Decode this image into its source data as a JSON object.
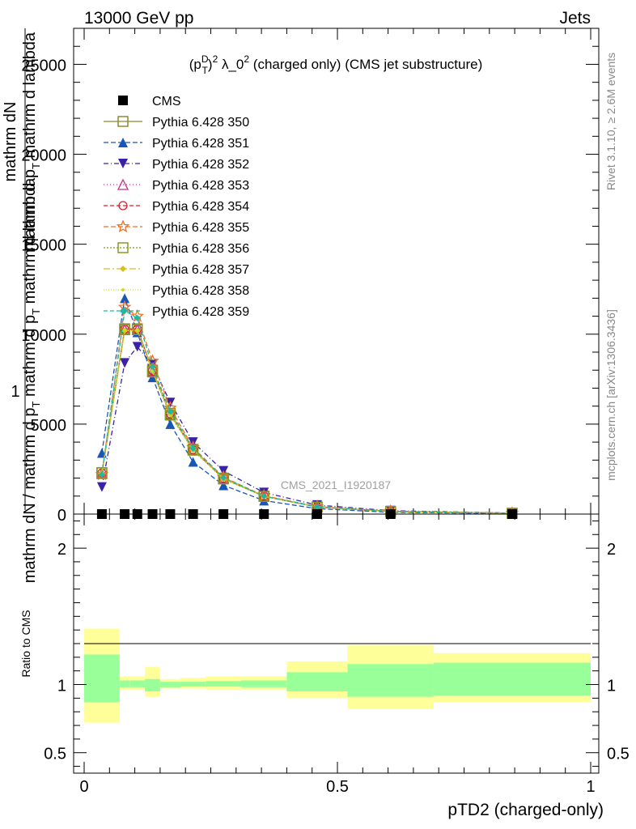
{
  "header": {
    "left": "13000 GeV pp",
    "right": "Jets"
  },
  "side_labels": {
    "rivet": "Rivet 3.1.10, ≥ 2.6M events",
    "mcplots": "mcplots.cern.ch [arXiv:1306.3436]"
  },
  "watermark": "CMS_2021_I1920187",
  "chart_data": [
    {
      "type": "line",
      "panel": "main",
      "title": "(p_T^D)^2 λ_0^2 (charged only) (CMS jet substructure)",
      "title_parts": {
        "pre": "(p",
        "sub": "T",
        "sup1": "D",
        "mid": ")",
        "sup2": "2",
        "post": " λ_0",
        "sup3": "2",
        "tail": " (charged only) (CMS jet substructure)"
      },
      "ylabel_parts": {
        "one": "1",
        "numer": "mathrm dN",
        "denom": "mathrm d p",
        "denom_sub": "T",
        "denom_tail": " mathrm d lambda",
        "frac": "mathrm dN / mathrm d p",
        "frac_sub": "T",
        "frac_tail": " mathrm d p",
        "frac_sub2": "T",
        "frac_tail2": " mathrm d lambda"
      },
      "xlim": [
        0,
        1
      ],
      "ylim": [
        0,
        27000
      ],
      "yticks": [
        0,
        5000,
        10000,
        15000,
        20000,
        25000
      ],
      "ytick_labels": [
        "0",
        "5000",
        "10000",
        "15000",
        "20000",
        "25000"
      ],
      "x": [
        0.035,
        0.08,
        0.105,
        0.135,
        0.17,
        0.215,
        0.275,
        0.355,
        0.46,
        0.605,
        0.845
      ],
      "series": [
        {
          "name": "CMS",
          "color": "#000000",
          "marker": "square-filled",
          "dash": "none",
          "values": [
            0,
            0,
            0,
            0,
            0,
            0,
            0,
            0,
            0,
            0,
            0
          ]
        },
        {
          "name": "Pythia 6.428 350",
          "color": "#8b8b2e",
          "marker": "square-open",
          "dash": "solid",
          "values": [
            2300,
            10300,
            10300,
            8000,
            5600,
            3600,
            2000,
            1000,
            400,
            150,
            50
          ]
        },
        {
          "name": "Pythia 6.428 351",
          "color": "#1a56b8",
          "marker": "triangle-up-filled",
          "dash": "6,3",
          "values": [
            3400,
            12000,
            10100,
            7600,
            5000,
            2900,
            1600,
            750,
            300,
            100,
            30
          ]
        },
        {
          "name": "Pythia 6.428 352",
          "color": "#3a22a8",
          "marker": "triangle-down-filled",
          "dash": "6,3,1,3",
          "values": [
            1500,
            8400,
            9300,
            8300,
            6200,
            4000,
            2400,
            1200,
            500,
            190,
            60
          ]
        },
        {
          "name": "Pythia 6.428 353",
          "color": "#c0308a",
          "marker": "triangle-up-open",
          "dash": "1,3",
          "values": [
            2250,
            10250,
            10250,
            7950,
            5550,
            3560,
            1980,
            990,
            390,
            140,
            45
          ]
        },
        {
          "name": "Pythia 6.428 354",
          "color": "#d8202a",
          "marker": "circle-open",
          "dash": "5,3",
          "values": [
            2280,
            10280,
            10280,
            7980,
            5580,
            3580,
            1990,
            995,
            395,
            145,
            48
          ]
        },
        {
          "name": "Pythia 6.428 355",
          "color": "#f07020",
          "marker": "star-open",
          "dash": "6,3",
          "values": [
            2200,
            11500,
            11000,
            8500,
            5900,
            3700,
            2050,
            1020,
            420,
            160,
            52
          ]
        },
        {
          "name": "Pythia 6.428 356",
          "color": "#8a9a20",
          "marker": "square-open",
          "dash": "2,2",
          "values": [
            2300,
            10250,
            10250,
            7900,
            5500,
            3550,
            1950,
            980,
            390,
            145,
            48
          ]
        },
        {
          "name": "Pythia 6.428 357",
          "color": "#d8c020",
          "marker": "diamond-filled",
          "dash": "8,3,2,3",
          "values": [
            2250,
            10200,
            10200,
            7950,
            5550,
            3570,
            1970,
            985,
            392,
            142,
            46
          ]
        },
        {
          "name": "Pythia 6.428 358",
          "color": "#c8e020",
          "marker": "dot",
          "dash": "1,2",
          "values": [
            2270,
            10220,
            10220,
            7960,
            5560,
            3575,
            1975,
            988,
            393,
            143,
            47
          ]
        },
        {
          "name": "Pythia 6.428 359",
          "color": "#20b8a0",
          "marker": "diamond-filled",
          "dash": "5,3",
          "values": [
            2200,
            11300,
            10900,
            8200,
            5700,
            3650,
            2020,
            1000,
            400,
            148,
            49
          ]
        }
      ]
    },
    {
      "type": "area",
      "panel": "ratio",
      "ylabel": "Ratio to CMS",
      "xlabel": "pTD2 (charged-only)",
      "xlim": [
        0,
        1
      ],
      "ylim": [
        0.35,
        2.25
      ],
      "xticks": [
        0,
        0.5,
        1
      ],
      "xtick_labels": [
        "0",
        "0.5",
        "1"
      ],
      "yticks": [
        0.5,
        1,
        2
      ],
      "ytick_labels": [
        "0.5",
        "1",
        "2"
      ],
      "bin_edges": [
        0,
        0.07,
        0.09,
        0.12,
        0.15,
        0.19,
        0.24,
        0.31,
        0.4,
        0.52,
        0.69,
        1.0
      ],
      "inner_band": {
        "color": "#99ff99",
        "low": [
          0.87,
          0.98,
          0.98,
          0.95,
          0.98,
          0.985,
          0.985,
          0.98,
          0.95,
          0.91,
          0.92
        ],
        "high": [
          1.22,
          1.03,
          1.03,
          1.04,
          1.02,
          1.02,
          1.025,
          1.03,
          1.09,
          1.15,
          1.16
        ]
      },
      "outer_band": {
        "color": "#ffff99",
        "low": [
          0.72,
          0.96,
          0.96,
          0.91,
          0.97,
          0.97,
          0.96,
          0.96,
          0.9,
          0.82,
          0.87
        ],
        "high": [
          1.41,
          1.06,
          1.06,
          1.13,
          1.04,
          1.05,
          1.06,
          1.06,
          1.17,
          1.29,
          1.23
        ]
      },
      "reference": 1
    }
  ]
}
